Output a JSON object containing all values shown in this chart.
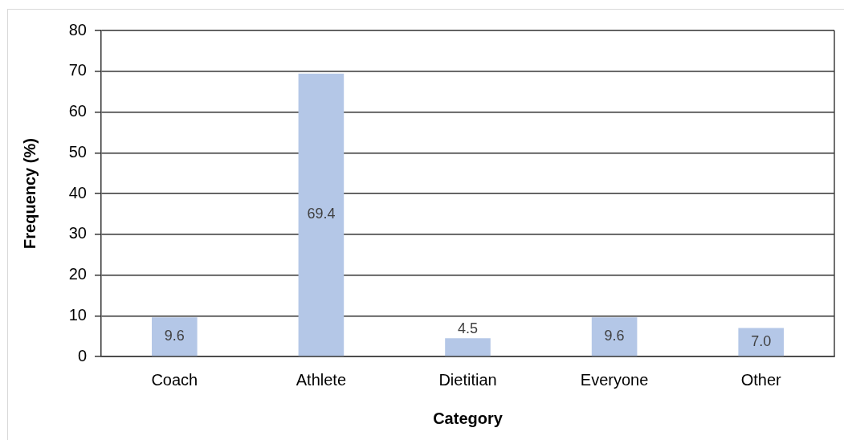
{
  "chart_data": {
    "type": "bar",
    "xlabel": "Category",
    "ylabel": "Frequency (%)",
    "categories": [
      "Coach",
      "Athlete",
      "Dietitian",
      "Everyone",
      "Other"
    ],
    "values": [
      9.6,
      69.4,
      4.5,
      9.6,
      7.0
    ],
    "value_labels": [
      "9.6",
      "69.4",
      "4.5",
      "9.6",
      "7.0"
    ],
    "color": "#b4c7e7",
    "ylim": [
      0,
      80
    ],
    "yticks": [
      0,
      10,
      20,
      30,
      40,
      50,
      60,
      70,
      80
    ],
    "grid": "y",
    "legend": false
  }
}
